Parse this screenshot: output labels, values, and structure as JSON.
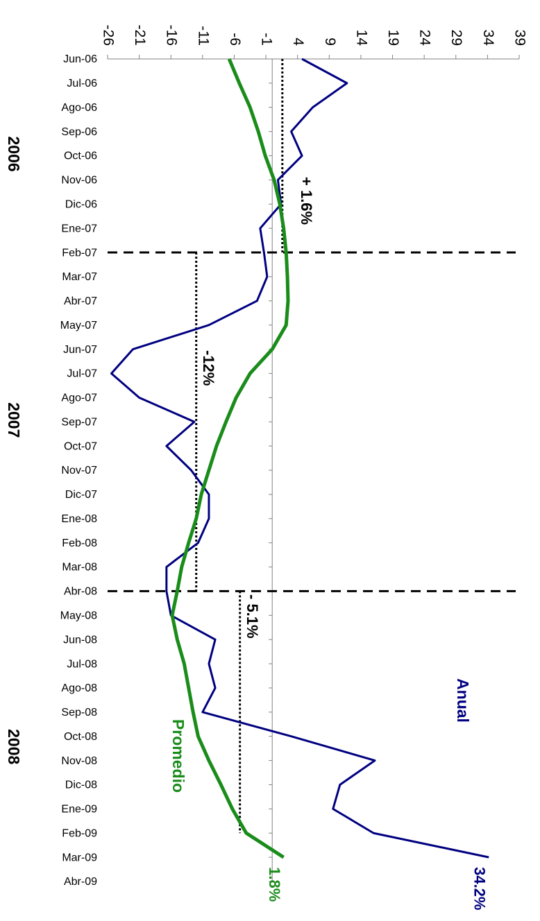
{
  "chart_data": {
    "type": "line",
    "orientation": "rotated",
    "categories": [
      "Jun-06",
      "Jul-06",
      "Ago-06",
      "Sep-06",
      "Oct-06",
      "Nov-06",
      "Dic-06",
      "Ene-07",
      "Feb-07",
      "Mar-07",
      "Abr-07",
      "May-07",
      "Jun-07",
      "Jul-07",
      "Ago-07",
      "Sep-07",
      "Oct-07",
      "Nov-07",
      "Dic-07",
      "Ene-08",
      "Feb-08",
      "Mar-08",
      "Abr-08",
      "May-08",
      "Jun-08",
      "Jul-08",
      "Ago-08",
      "Sep-08",
      "Oct-08",
      "Nov-08",
      "Dic-08",
      "Ene-09",
      "Feb-09",
      "Mar-09",
      "Abr-09"
    ],
    "series": [
      {
        "name": "Anual",
        "color": "#000080",
        "end_label": "34.2%",
        "values": [
          4.7,
          11.8,
          6.4,
          3,
          4.7,
          0.9,
          1.4,
          -1.9,
          -1.3,
          -0.8,
          -2.4,
          -10,
          -22,
          -25.4,
          -21,
          -12.3,
          -16.7,
          -12.8,
          -10,
          -10,
          -11.7,
          -16.7,
          -16.7,
          -16,
          -9,
          -10,
          -9,
          -11,
          3,
          16.2,
          10.7,
          9.6,
          16,
          34.2,
          null
        ]
      },
      {
        "name": "Promedio",
        "color": "#1a8c1a",
        "end_label": "1.8%",
        "values": [
          -6.8,
          -5.2,
          -3.5,
          -2.2,
          -1.1,
          0.3,
          1.2,
          1.8,
          2.2,
          2.4,
          2.5,
          2.2,
          0,
          -3.5,
          -5.7,
          -7.3,
          -8.8,
          -10,
          -11.2,
          -12,
          -13.2,
          -14.3,
          -15,
          -15.8,
          -15,
          -13.9,
          -13.2,
          -12.5,
          -11.7,
          -10,
          -8.1,
          -6.3,
          -4.1,
          1.8,
          null
        ]
      }
    ],
    "ylim": [
      -26,
      39
    ],
    "yticks": [
      -26,
      -21,
      -16,
      -11,
      -6,
      -1,
      4,
      9,
      14,
      19,
      24,
      29,
      34,
      39
    ],
    "reference_lines": [
      {
        "value": 1.6,
        "label": "+ 1.6%",
        "from": "Jun-06",
        "to": "Feb-07"
      },
      {
        "value": -12,
        "label": "-12%",
        "from": "Feb-07",
        "to": "Abr-08"
      },
      {
        "value": -5.1,
        "label": "- 5.1%",
        "from": "Abr-08",
        "to": "Feb-09"
      }
    ],
    "dividers": [
      "Feb-07",
      "Abr-08"
    ],
    "groups": [
      {
        "label": "2006",
        "from": "Jun-06",
        "to": "Ene-07"
      },
      {
        "label": "2007",
        "from": "Feb-07",
        "to": "Mar-08"
      },
      {
        "label": "2008",
        "from": "Abr-08",
        "to": "Abr-09"
      }
    ]
  }
}
